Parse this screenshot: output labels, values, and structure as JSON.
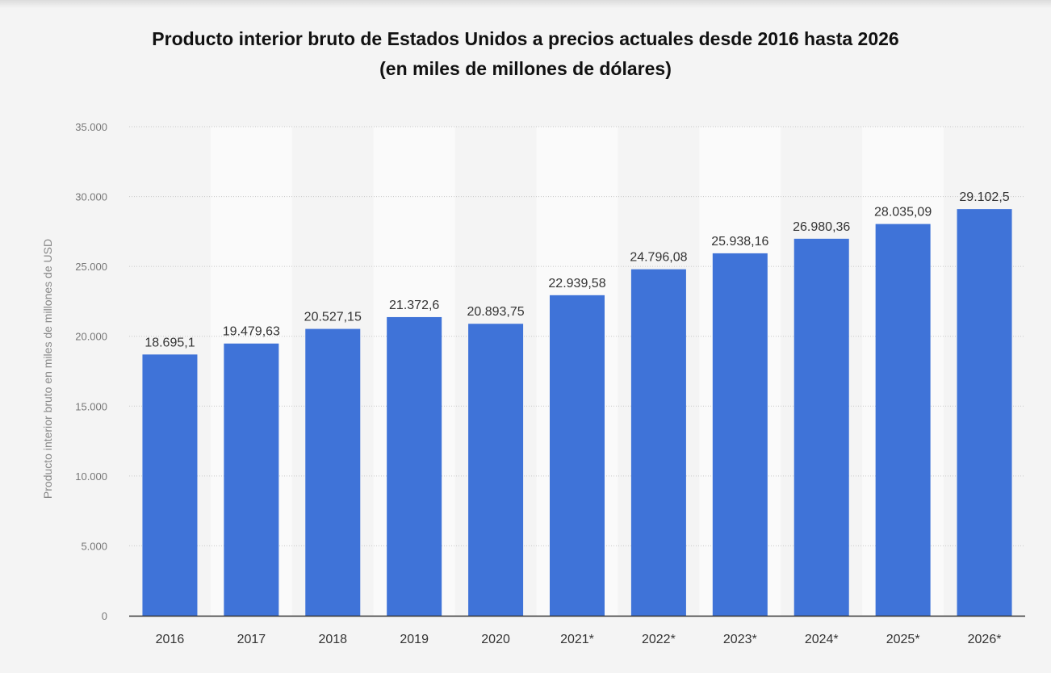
{
  "chart_data": {
    "type": "bar",
    "title_line1": "Producto interior bruto de Estados Unidos a precios actuales desde 2016 hasta 2026",
    "title_line2": "(en miles de millones de dólares)",
    "xlabel": "",
    "ylabel": "Producto interior bruto en miles de millones de USD",
    "categories": [
      "2016",
      "2017",
      "2018",
      "2019",
      "2020",
      "2021*",
      "2022*",
      "2023*",
      "2024*",
      "2025*",
      "2026*"
    ],
    "values": [
      18695.1,
      19479.63,
      20527.15,
      21372.6,
      20893.75,
      22939.58,
      24796.08,
      25938.16,
      26980.36,
      28035.09,
      29102.5
    ],
    "value_labels": [
      "18.695,1",
      "19.479,63",
      "20.527,15",
      "21.372,6",
      "20.893,75",
      "22.939,58",
      "24.796,08",
      "25.938,16",
      "26.980,36",
      "28.035,09",
      "29.102,5"
    ],
    "yticks": [
      0,
      5000,
      10000,
      15000,
      20000,
      25000,
      30000,
      35000
    ],
    "ytick_labels": [
      "0",
      "5.000",
      "10.000",
      "15.000",
      "20.000",
      "25.000",
      "30.000",
      "35.000"
    ],
    "ylim": [
      0,
      35000
    ],
    "grid": true,
    "legend": "none",
    "colors": {
      "bar": "#3f73d8",
      "background": "#f4f4f4",
      "band": "#fafafa",
      "grid": "#c8c8c8",
      "axis": "#333333"
    }
  }
}
